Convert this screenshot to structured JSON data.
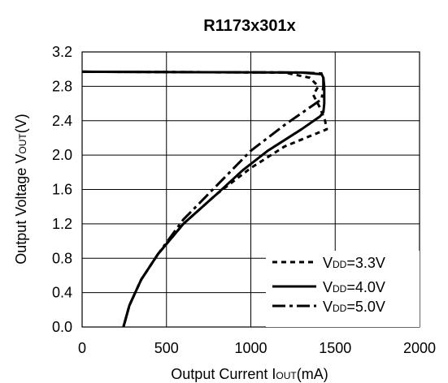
{
  "chart_data": {
    "type": "line",
    "title": "R1173x301x",
    "xlabel": "Output Current IOUT(mA)",
    "xlabel_main": "Output Current I",
    "xlabel_sub": "OUT",
    "xlabel_unit": "(mA)",
    "ylabel": "Output Voltage VOUT(V)",
    "ylabel_main": "Output Voltage V",
    "ylabel_sub": "OUT",
    "ylabel_unit": "(V)",
    "xlim": [
      0,
      2000
    ],
    "ylim": [
      0,
      3.2
    ],
    "x_ticks": [
      "0",
      "500",
      "1000",
      "1500",
      "2000"
    ],
    "y_ticks": [
      "0.0",
      "0.4",
      "0.8",
      "1.2",
      "1.6",
      "2.0",
      "2.4",
      "2.8",
      "3.2"
    ],
    "grid": true,
    "legend_position": "bottom-right",
    "series": [
      {
        "name": "VDD=3.3V",
        "label_main": "V",
        "label_sub": "DD",
        "label_rest": "=3.3V",
        "dash": "dotted",
        "points": [
          [
            0,
            2.97
          ],
          [
            1200,
            2.96
          ],
          [
            1350,
            2.9
          ],
          [
            1400,
            2.8
          ],
          [
            1370,
            2.7
          ],
          [
            1410,
            2.55
          ],
          [
            1440,
            2.4
          ],
          [
            1450,
            2.3
          ],
          [
            1200,
            2.1
          ],
          [
            1000,
            1.85
          ],
          [
            800,
            1.55
          ],
          [
            600,
            1.2
          ],
          [
            450,
            0.85
          ],
          [
            350,
            0.55
          ],
          [
            280,
            0.25
          ],
          [
            245,
            0.0
          ]
        ]
      },
      {
        "name": "VDD=4.0V",
        "label_main": "V",
        "label_sub": "DD",
        "label_rest": "=4.0V",
        "dash": "solid",
        "points": [
          [
            0,
            2.97
          ],
          [
            1300,
            2.96
          ],
          [
            1420,
            2.94
          ],
          [
            1430,
            2.9
          ],
          [
            1435,
            2.8
          ],
          [
            1435,
            2.6
          ],
          [
            1430,
            2.5
          ],
          [
            1410,
            2.45
          ],
          [
            1300,
            2.3
          ],
          [
            1100,
            2.05
          ],
          [
            950,
            1.82
          ],
          [
            800,
            1.55
          ],
          [
            600,
            1.2
          ],
          [
            450,
            0.85
          ],
          [
            350,
            0.55
          ],
          [
            280,
            0.25
          ],
          [
            245,
            0.0
          ]
        ]
      },
      {
        "name": "VDD=5.0V",
        "label_main": "V",
        "label_sub": "DD",
        "label_rest": "=5.0V",
        "dash": "dashdot",
        "points": [
          [
            0,
            2.97
          ],
          [
            1300,
            2.96
          ],
          [
            1420,
            2.95
          ],
          [
            1430,
            2.9
          ],
          [
            1430,
            2.8
          ],
          [
            1420,
            2.65
          ],
          [
            1200,
            2.35
          ],
          [
            1000,
            2.05
          ],
          [
            800,
            1.65
          ],
          [
            600,
            1.25
          ],
          [
            450,
            0.85
          ],
          [
            350,
            0.55
          ],
          [
            280,
            0.25
          ],
          [
            245,
            0.0
          ]
        ]
      }
    ]
  }
}
